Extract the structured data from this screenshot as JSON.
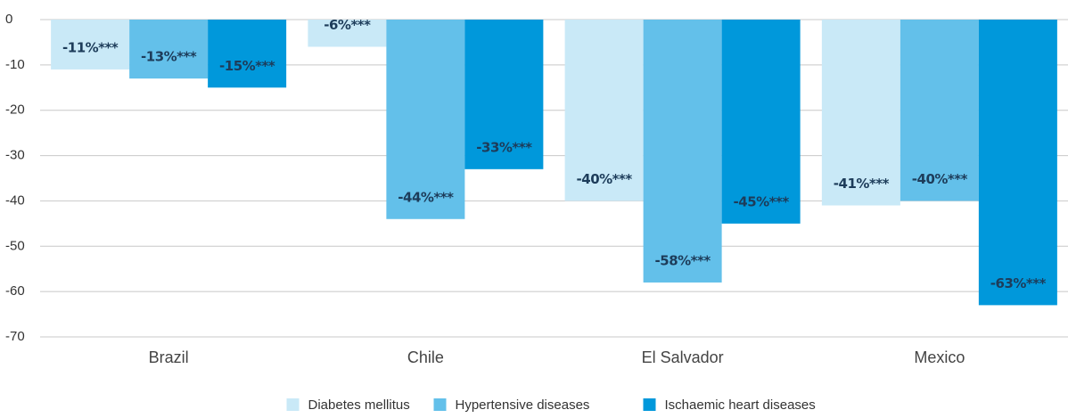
{
  "chart_data": {
    "type": "bar",
    "categories": [
      "Brazil",
      "Chile",
      "El Salvador",
      "Mexico"
    ],
    "series": [
      {
        "name": "Diabetes mellitus",
        "color": "#c9e9f7",
        "values": [
          -11,
          -6,
          -40,
          -41
        ],
        "value_labels": [
          "-11%***",
          "-6%***",
          "-40%***",
          "-41%***"
        ]
      },
      {
        "name": "Hypertensive diseases",
        "color": "#63c0ea",
        "values": [
          -13,
          -44,
          -58,
          -40
        ],
        "value_labels": [
          "-13%***",
          "-44%***",
          "-58%***",
          "-40%***"
        ]
      },
      {
        "name": "Ischaemic heart diseases",
        "color": "#0098db",
        "values": [
          -15,
          -33,
          -45,
          -63
        ],
        "value_labels": [
          "-15%***",
          "-33%***",
          "-45%***",
          "-63%***"
        ]
      }
    ],
    "ylim": [
      -70,
      0
    ],
    "yticks": [
      0,
      -10,
      -20,
      -30,
      -40,
      -50,
      -60,
      -70
    ],
    "grid": true
  }
}
